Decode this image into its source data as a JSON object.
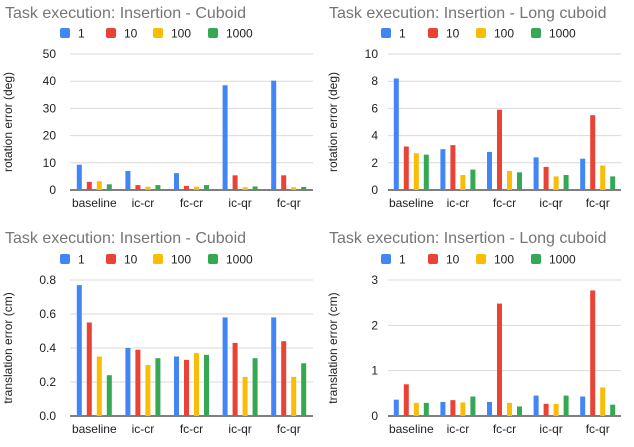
{
  "chart_data": [
    {
      "type": "bar",
      "title": "Task execution: Insertion - Cuboid",
      "xlabel": "",
      "ylabel": "rotation error (deg)",
      "ylim": [
        0,
        50
      ],
      "yticks": [
        0,
        10,
        20,
        30,
        40,
        50
      ],
      "grid": true,
      "legend": "top",
      "categories": [
        "baseline",
        "ic-cr",
        "fc-cr",
        "ic-qr",
        "fc-qr"
      ],
      "series": [
        {
          "name": "1",
          "color": "#4285f4",
          "values": [
            9.3,
            7.0,
            6.2,
            38.5,
            40.2
          ]
        },
        {
          "name": "10",
          "color": "#ea4335",
          "values": [
            3.0,
            1.8,
            1.5,
            5.4,
            5.4
          ]
        },
        {
          "name": "100",
          "color": "#fbbc04",
          "values": [
            3.2,
            1.2,
            1.2,
            1.0,
            1.0
          ]
        },
        {
          "name": "1000",
          "color": "#34a853",
          "values": [
            2.1,
            1.8,
            1.8,
            1.3,
            1.1
          ]
        }
      ]
    },
    {
      "type": "bar",
      "title": "Task execution: Insertion - Long cuboid",
      "xlabel": "",
      "ylabel": "rotation error (deg)",
      "ylim": [
        0,
        10
      ],
      "yticks": [
        0,
        2,
        4,
        6,
        8,
        10
      ],
      "grid": true,
      "legend": "top",
      "categories": [
        "baseline",
        "ic-cr",
        "fc-cr",
        "ic-qr",
        "fc-qr"
      ],
      "series": [
        {
          "name": "1",
          "color": "#4285f4",
          "values": [
            8.2,
            3.0,
            2.8,
            2.4,
            2.3
          ]
        },
        {
          "name": "10",
          "color": "#ea4335",
          "values": [
            3.2,
            3.3,
            5.9,
            1.7,
            5.5
          ]
        },
        {
          "name": "100",
          "color": "#fbbc04",
          "values": [
            2.7,
            1.1,
            1.4,
            1.0,
            1.8
          ]
        },
        {
          "name": "1000",
          "color": "#34a853",
          "values": [
            2.6,
            1.5,
            1.3,
            1.1,
            1.0
          ]
        }
      ]
    },
    {
      "type": "bar",
      "title": "Task execution: Insertion - Cuboid",
      "xlabel": "",
      "ylabel": "translation error (cm)",
      "ylim": [
        0,
        0.8
      ],
      "yticks": [
        0.0,
        0.2,
        0.4,
        0.6,
        0.8
      ],
      "grid": true,
      "legend": "top",
      "categories": [
        "baseline",
        "ic-cr",
        "fc-cr",
        "ic-qr",
        "fc-qr"
      ],
      "series": [
        {
          "name": "1",
          "color": "#4285f4",
          "values": [
            0.77,
            0.4,
            0.35,
            0.58,
            0.58
          ]
        },
        {
          "name": "10",
          "color": "#ea4335",
          "values": [
            0.55,
            0.39,
            0.33,
            0.43,
            0.44
          ]
        },
        {
          "name": "100",
          "color": "#fbbc04",
          "values": [
            0.35,
            0.3,
            0.37,
            0.23,
            0.23
          ]
        },
        {
          "name": "1000",
          "color": "#34a853",
          "values": [
            0.24,
            0.34,
            0.36,
            0.34,
            0.31
          ]
        }
      ]
    },
    {
      "type": "bar",
      "title": "Task execution: Insertion - Long cuboid",
      "xlabel": "",
      "ylabel": "translation error (cm)",
      "ylim": [
        0,
        3
      ],
      "yticks": [
        0,
        1,
        2,
        3
      ],
      "grid": true,
      "legend": "top",
      "categories": [
        "baseline",
        "ic-cr",
        "fc-cr",
        "ic-qr",
        "fc-qr"
      ],
      "series": [
        {
          "name": "1",
          "color": "#4285f4",
          "values": [
            0.36,
            0.31,
            0.31,
            0.45,
            0.43
          ]
        },
        {
          "name": "10",
          "color": "#ea4335",
          "values": [
            0.7,
            0.35,
            2.48,
            0.27,
            2.77
          ]
        },
        {
          "name": "100",
          "color": "#fbbc04",
          "values": [
            0.29,
            0.3,
            0.29,
            0.27,
            0.63
          ]
        },
        {
          "name": "1000",
          "color": "#34a853",
          "values": [
            0.29,
            0.43,
            0.21,
            0.45,
            0.25
          ]
        }
      ]
    }
  ]
}
